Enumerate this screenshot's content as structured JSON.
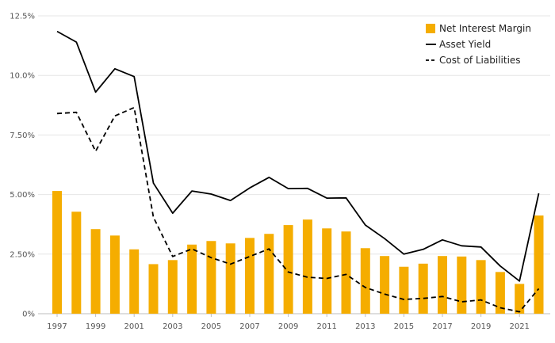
{
  "chart_data": {
    "type": "bar+line",
    "title": "",
    "xlabel": "",
    "ylabel": "",
    "ylim": [
      0,
      12.5
    ],
    "y_ticks": [
      "0%",
      "2.50%",
      "5.00%",
      "7.50%",
      "10.0%",
      "12.5%"
    ],
    "y_tick_values": [
      0,
      2.5,
      5.0,
      7.5,
      10.0,
      12.5
    ],
    "x": [
      1997,
      1998,
      1999,
      2000,
      2001,
      2002,
      2003,
      2004,
      2005,
      2006,
      2007,
      2008,
      2009,
      2010,
      2011,
      2012,
      2013,
      2014,
      2015,
      2016,
      2017,
      2018,
      2019,
      2020,
      2021,
      2022
    ],
    "x_tick_labels": [
      "1997",
      "1999",
      "2001",
      "2003",
      "2005",
      "2007",
      "2009",
      "2011",
      "2013",
      "2015",
      "2017",
      "2019",
      "2021"
    ],
    "grid": true,
    "legend_position": "top-right",
    "series": [
      {
        "name": "Net Interest Margin",
        "kind": "bar",
        "color": "#f5ad00",
        "values": [
          5.15,
          4.28,
          3.55,
          3.28,
          2.7,
          2.08,
          2.25,
          2.9,
          3.05,
          2.95,
          3.18,
          3.35,
          3.72,
          3.95,
          3.58,
          3.45,
          2.75,
          2.42,
          1.97,
          2.1,
          2.42,
          2.4,
          2.25,
          1.75,
          1.25,
          4.12
        ]
      },
      {
        "name": "Asset Yield",
        "kind": "line",
        "style": "solid",
        "color": "#000000",
        "values": [
          11.85,
          11.4,
          9.3,
          10.28,
          9.95,
          5.48,
          4.22,
          5.15,
          5.02,
          4.75,
          5.28,
          5.72,
          5.25,
          5.26,
          4.85,
          4.86,
          3.72,
          3.15,
          2.5,
          2.7,
          3.1,
          2.85,
          2.8,
          2.0,
          1.37,
          5.05
        ]
      },
      {
        "name": "Cost of Liabilities",
        "kind": "line",
        "style": "dashed",
        "color": "#000000",
        "values": [
          8.4,
          8.45,
          6.82,
          8.3,
          8.65,
          4.05,
          2.4,
          2.72,
          2.35,
          2.08,
          2.4,
          2.72,
          1.75,
          1.53,
          1.48,
          1.65,
          1.1,
          0.82,
          0.6,
          0.64,
          0.72,
          0.5,
          0.58,
          0.25,
          0.08,
          1.05
        ]
      }
    ]
  }
}
